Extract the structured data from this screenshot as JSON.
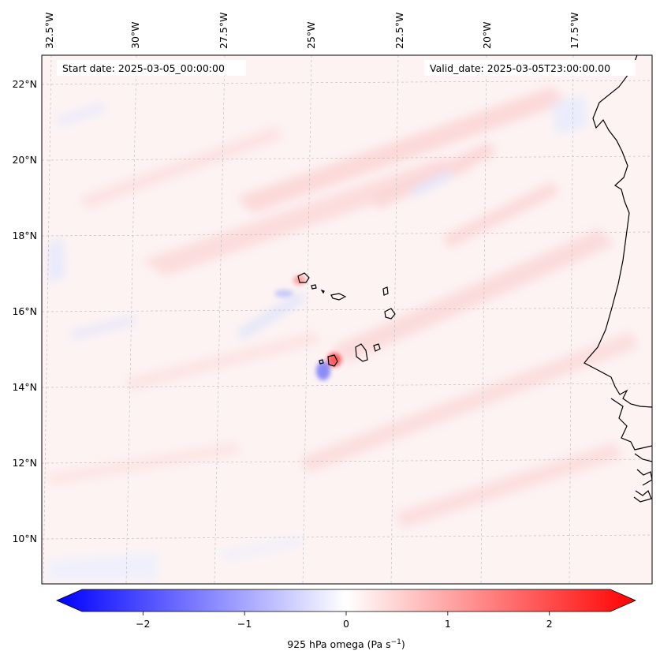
{
  "map": {
    "start_date": "Start date: 2025-03-05_00:00:00",
    "valid_date": "Valid_date: 2025-03-05T23:00:00.00",
    "lon_labels": [
      "32.5°W",
      "30°W",
      "27.5°W",
      "25°W",
      "22.5°W",
      "20°W",
      "17.5°W"
    ],
    "lat_labels": [
      "22°N",
      "20°N",
      "18°N",
      "16°N",
      "14°N",
      "12°N",
      "10°N"
    ],
    "colors": {
      "negative": "#0000ff",
      "zero": "#ffffff",
      "positive": "#ff0000",
      "coastline": "#000000",
      "grid": "#b0b0b0"
    }
  },
  "colorbar": {
    "ticks": [
      "−2",
      "−1",
      "0",
      "1",
      "2"
    ],
    "tick_values": [
      -2,
      -1,
      0,
      1,
      2
    ],
    "range": [
      -2.6,
      2.6
    ],
    "label_main": "925 hPa omega (Pa s",
    "label_exp": "−1",
    "label_close": ")"
  }
}
